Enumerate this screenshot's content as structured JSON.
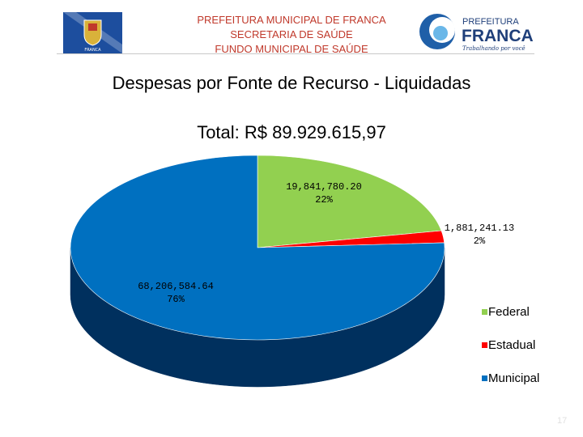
{
  "header": {
    "org_line1": "PREFEITURA MUNICIPAL DE FRANCA",
    "org_line2": "SECRETARIA DE SAÚDE",
    "org_line3": "FUNDO MUNICIPAL DE SAÚDE",
    "logo_top": "PREFEITURA",
    "logo_name": "FRANCA",
    "logo_tagline": "Trabalhando por você",
    "crest_text": "FRANCA"
  },
  "slide": {
    "title": "Despesas por Fonte de Recurso - Liquidadas",
    "total": "Total: R$ 89.929.615,97",
    "page_number": "17"
  },
  "colors": {
    "federal": "#92d050",
    "estadual": "#ff0000",
    "municipal": "#0070c0",
    "municipal_side": "#00305e",
    "header_text": "#c0392b"
  },
  "chart_data": {
    "type": "pie",
    "style": "3d",
    "legend_position": "right",
    "series": [
      {
        "name": "Federal",
        "value": 19841780.2,
        "value_label": "19,841,780.20",
        "percent_label": "22%"
      },
      {
        "name": "Estadual",
        "value": 1881241.13,
        "value_label": "1,881,241.13",
        "percent_label": "2%"
      },
      {
        "name": "Municipal",
        "value": 68206584.64,
        "value_label": "68,206,584.64",
        "percent_label": "76%"
      }
    ]
  }
}
